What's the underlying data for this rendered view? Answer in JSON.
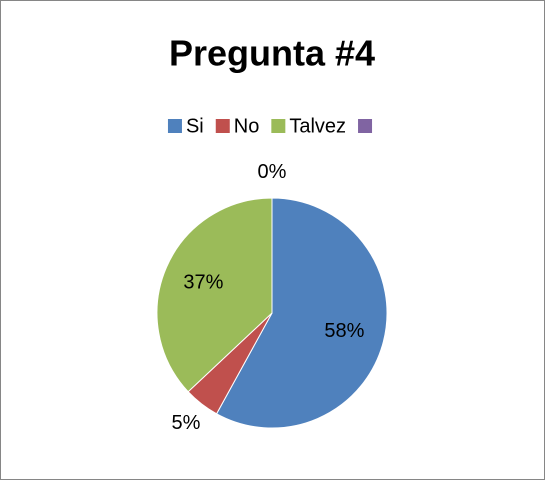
{
  "chart_data": {
    "type": "pie",
    "title": "Pregunta #4",
    "categories": [
      "Si",
      "No",
      "Talvez",
      null
    ],
    "values": [
      58,
      5,
      37,
      0
    ],
    "value_labels": [
      "58%",
      "5%",
      "37%",
      "0%"
    ],
    "colors": [
      "#4f81bd",
      "#c0504d",
      "#9bbb59",
      "#8064a2"
    ],
    "legend": "top"
  }
}
